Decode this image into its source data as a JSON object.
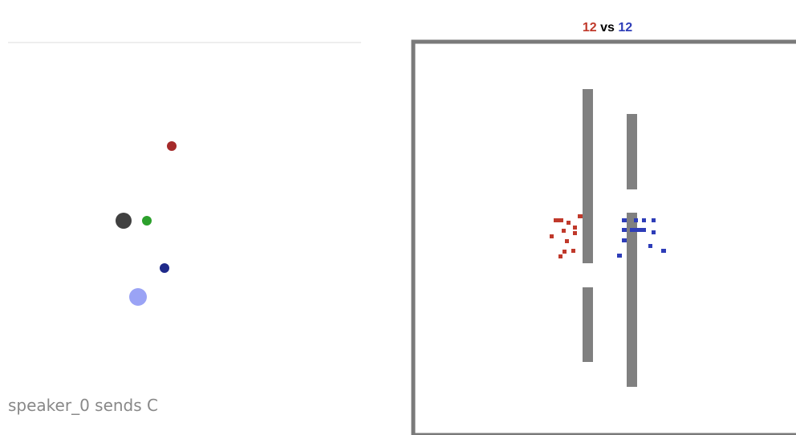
{
  "left_panel": {
    "caption": "speaker_0 sends C"
  },
  "right_panel": {
    "score": {
      "red": "12",
      "separator": "vs",
      "blue": "12"
    }
  }
}
